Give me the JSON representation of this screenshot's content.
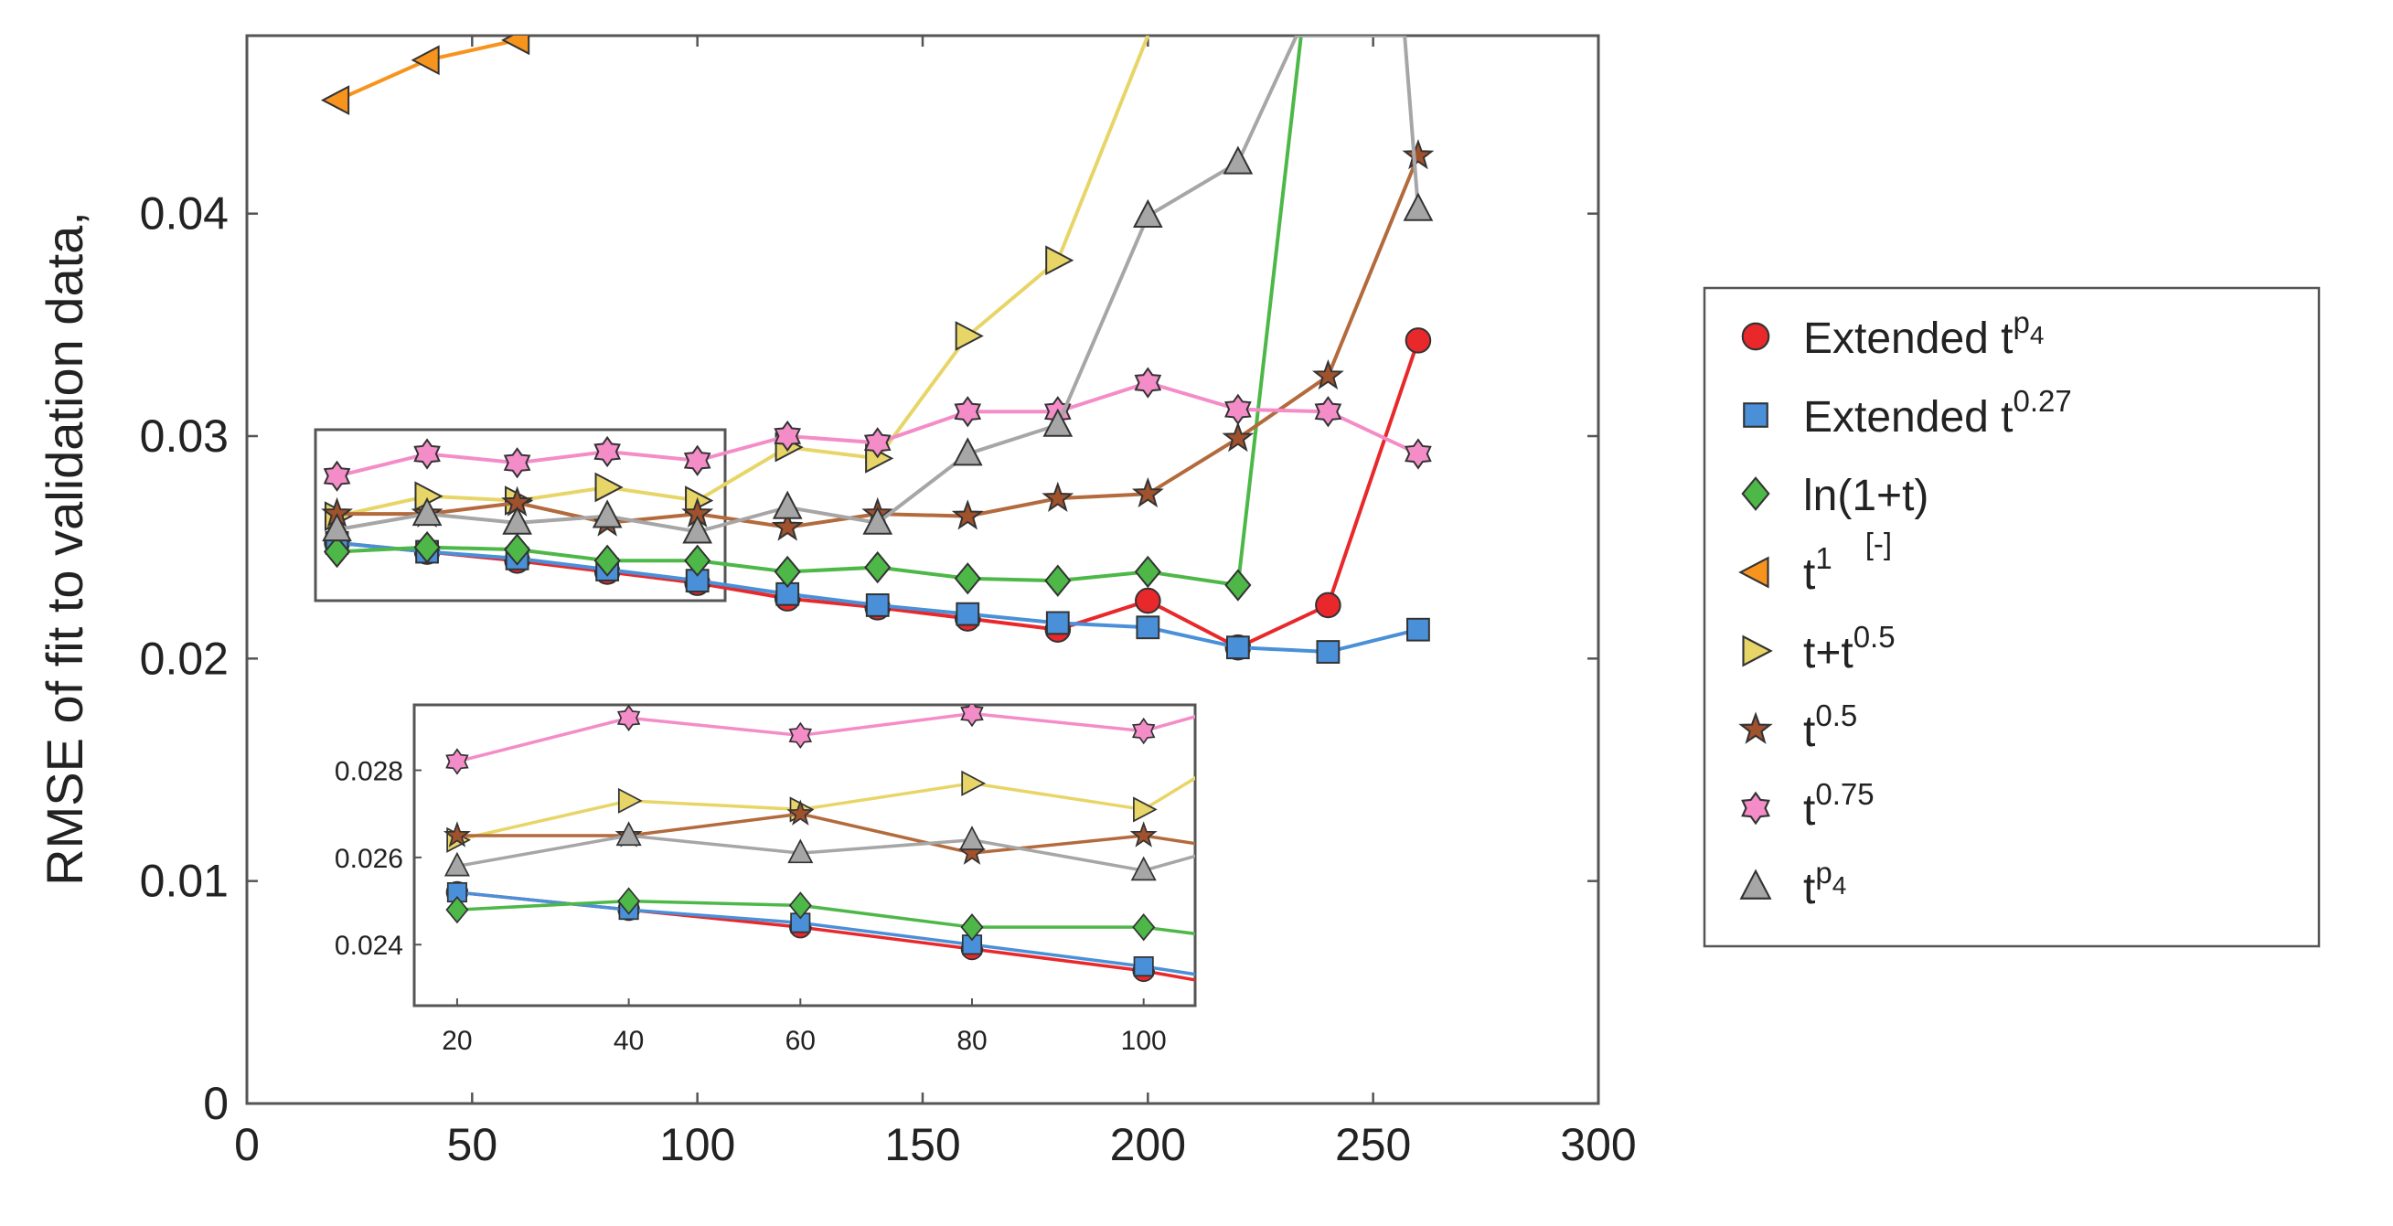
{
  "chart_data": {
    "type": "line",
    "ylabel": "RMSE of fit to validation data,",
    "xlim": [
      0,
      300
    ],
    "ylim": [
      0,
      0.048
    ],
    "xticks": [
      "0",
      "50",
      "100",
      "150",
      "200",
      "250",
      "300"
    ],
    "yticks": [
      "0",
      "0.01",
      "0.02",
      "0.03",
      "0.04"
    ],
    "xtick_values": [
      0,
      50,
      100,
      150,
      200,
      250,
      300
    ],
    "ytick_values": [
      0,
      0.01,
      0.02,
      0.03,
      0.04
    ],
    "legend_position": "right",
    "grid": false,
    "series": [
      {
        "key": "ext_p4",
        "name": "Extended t",
        "sup": "p",
        "subsup": "4",
        "marker": "circle",
        "color": "#e8282b",
        "line": "#e8282b",
        "x": [
          20,
          40,
          60,
          80,
          100,
          120,
          140,
          160,
          180,
          200,
          220,
          240,
          260
        ],
        "y": [
          0.0252,
          0.0248,
          0.0244,
          0.0239,
          0.0234,
          0.0227,
          0.0223,
          0.0218,
          0.0213,
          0.0226,
          0.0205,
          0.0224,
          0.0343
        ]
      },
      {
        "key": "ext_027",
        "name": "Extended t",
        "sup": "0.27",
        "marker": "square",
        "color": "#4a90d9",
        "line": "#4a90d9",
        "x": [
          20,
          40,
          60,
          80,
          100,
          120,
          140,
          160,
          180,
          200,
          220,
          240,
          260
        ],
        "y": [
          0.0252,
          0.0248,
          0.0245,
          0.024,
          0.0235,
          0.0229,
          0.0224,
          0.022,
          0.0216,
          0.0214,
          0.0205,
          0.0203,
          0.0213
        ]
      },
      {
        "key": "ln",
        "name": "ln(1+t)",
        "marker": "diamond",
        "color": "#4db848",
        "line": "#4db848",
        "x": [
          20,
          40,
          60,
          80,
          100,
          120,
          140,
          160,
          180,
          200,
          220,
          234
        ],
        "y": [
          0.0248,
          0.025,
          0.0249,
          0.0244,
          0.0244,
          0.0239,
          0.0241,
          0.0236,
          0.0235,
          0.0239,
          0.0233,
          0.048
        ]
      },
      {
        "key": "t1",
        "name": "t",
        "sup": "1",
        "extra": "[-]",
        "marker": "triangle-left",
        "color": "#f7941d",
        "line": "#f7941d",
        "x": [
          20,
          40,
          60
        ],
        "y": [
          0.0451,
          0.0469,
          0.0478
        ]
      },
      {
        "key": "tpt05",
        "name": "t+t",
        "sup": "0.5",
        "marker": "triangle-right",
        "color": "#e8d567",
        "line": "#e8d567",
        "x": [
          20,
          40,
          60,
          80,
          100,
          120,
          140,
          160,
          180,
          200
        ],
        "y": [
          0.0264,
          0.0273,
          0.0271,
          0.0277,
          0.0271,
          0.0295,
          0.029,
          0.0345,
          0.0379,
          0.048
        ]
      },
      {
        "key": "t05",
        "name": "t",
        "sup": "0.5",
        "marker": "star",
        "color": "#a0522d",
        "line": "#b36a3c",
        "x": [
          20,
          40,
          60,
          80,
          100,
          120,
          140,
          160,
          180,
          200,
          220,
          240,
          260
        ],
        "y": [
          0.0265,
          0.0265,
          0.027,
          0.0261,
          0.0265,
          0.0259,
          0.0265,
          0.0264,
          0.0272,
          0.0274,
          0.0299,
          0.0327,
          0.0426
        ]
      },
      {
        "key": "t075",
        "name": "t",
        "sup": "0.75",
        "marker": "flower",
        "color": "#f48cc8",
        "line": "#f48cc8",
        "x": [
          20,
          40,
          60,
          80,
          100,
          120,
          140,
          160,
          180,
          200,
          220,
          240,
          260
        ],
        "y": [
          0.0282,
          0.0292,
          0.0288,
          0.0293,
          0.0289,
          0.03,
          0.0297,
          0.0311,
          0.0311,
          0.0324,
          0.0312,
          0.0311,
          0.0292
        ]
      },
      {
        "key": "tp4",
        "name": "t",
        "sup": "p",
        "subsup": "4",
        "marker": "triangle-up",
        "color": "#a6a6a6",
        "line": "#a6a6a6",
        "x": [
          20,
          40,
          60,
          80,
          100,
          120,
          140,
          160,
          180,
          200,
          220,
          233,
          257,
          260
        ],
        "y": [
          0.0258,
          0.0265,
          0.0261,
          0.0264,
          0.0257,
          0.0268,
          0.0261,
          0.0292,
          0.0305,
          0.0399,
          0.0423,
          0.048,
          0.048,
          0.0402
        ]
      }
    ],
    "inset": {
      "xticks": [
        "20",
        "40",
        "60",
        "80",
        "100"
      ],
      "yticks": [
        "0.024",
        "0.026",
        "0.028"
      ],
      "xtick_values": [
        20,
        40,
        60,
        80,
        100
      ],
      "ytick_values": [
        0.024,
        0.026,
        0.028
      ],
      "xlim": [
        15,
        106
      ],
      "ylim": [
        0.0226,
        0.0295
      ]
    }
  }
}
